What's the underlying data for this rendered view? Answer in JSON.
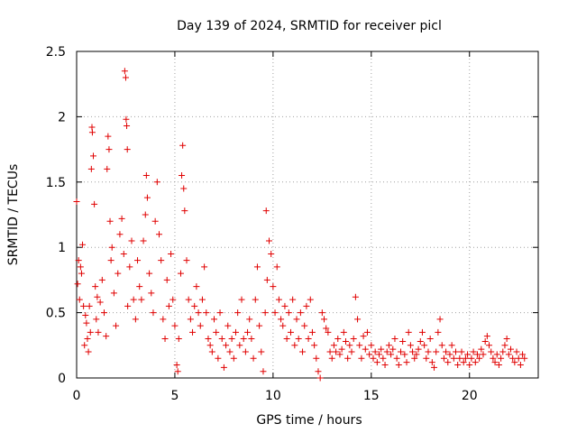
{
  "chart_data": {
    "type": "scatter",
    "title": "Day 139 of 2024, SRMTID for receiver picl",
    "xlabel": "GPS time / hours",
    "ylabel": "SRMTID / TECUs",
    "xlim": [
      0,
      23.5
    ],
    "ylim": [
      0,
      2.5
    ],
    "xticks": [
      0,
      5,
      10,
      15,
      20
    ],
    "yticks": [
      0,
      0.5,
      1,
      1.5,
      2,
      2.5
    ],
    "xtick_labels": [
      "0",
      "5",
      "10",
      "15",
      "20"
    ],
    "ytick_labels": [
      "0",
      "0.5",
      "1",
      "1.5",
      "2",
      "2.5"
    ],
    "grid": true,
    "marker": "+",
    "color": "#e00000",
    "series": [
      {
        "name": "SRMTID",
        "points": [
          [
            0.0,
            1.35
          ],
          [
            0.05,
            0.72
          ],
          [
            0.1,
            0.9
          ],
          [
            0.15,
            0.6
          ],
          [
            0.2,
            0.85
          ],
          [
            0.25,
            0.8
          ],
          [
            0.3,
            1.02
          ],
          [
            0.35,
            0.55
          ],
          [
            0.4,
            0.25
          ],
          [
            0.45,
            0.48
          ],
          [
            0.5,
            0.42
          ],
          [
            0.55,
            0.3
          ],
          [
            0.6,
            0.2
          ],
          [
            0.65,
            0.55
          ],
          [
            0.7,
            0.35
          ],
          [
            0.75,
            1.6
          ],
          [
            0.78,
            1.92
          ],
          [
            0.8,
            1.88
          ],
          [
            0.85,
            1.7
          ],
          [
            0.9,
            1.33
          ],
          [
            0.95,
            0.7
          ],
          [
            1.0,
            0.45
          ],
          [
            1.05,
            0.62
          ],
          [
            1.1,
            0.35
          ],
          [
            1.2,
            0.58
          ],
          [
            1.3,
            0.75
          ],
          [
            1.4,
            0.5
          ],
          [
            1.5,
            0.32
          ],
          [
            1.55,
            1.6
          ],
          [
            1.6,
            1.85
          ],
          [
            1.65,
            1.75
          ],
          [
            1.7,
            1.2
          ],
          [
            1.75,
            0.9
          ],
          [
            1.8,
            1.0
          ],
          [
            1.9,
            0.65
          ],
          [
            2.0,
            0.4
          ],
          [
            2.1,
            0.8
          ],
          [
            2.2,
            1.1
          ],
          [
            2.3,
            1.22
          ],
          [
            2.4,
            0.95
          ],
          [
            2.45,
            2.35
          ],
          [
            2.5,
            2.3
          ],
          [
            2.52,
            1.98
          ],
          [
            2.55,
            1.93
          ],
          [
            2.58,
            1.75
          ],
          [
            2.6,
            0.55
          ],
          [
            2.7,
            0.85
          ],
          [
            2.8,
            1.05
          ],
          [
            2.9,
            0.6
          ],
          [
            3.0,
            0.45
          ],
          [
            3.1,
            0.9
          ],
          [
            3.2,
            0.7
          ],
          [
            3.3,
            0.6
          ],
          [
            3.4,
            1.05
          ],
          [
            3.5,
            1.25
          ],
          [
            3.55,
            1.55
          ],
          [
            3.6,
            1.38
          ],
          [
            3.7,
            0.8
          ],
          [
            3.8,
            0.65
          ],
          [
            3.9,
            0.5
          ],
          [
            4.0,
            1.2
          ],
          [
            4.1,
            1.5
          ],
          [
            4.2,
            1.1
          ],
          [
            4.3,
            0.9
          ],
          [
            4.4,
            0.45
          ],
          [
            4.5,
            0.3
          ],
          [
            4.6,
            0.75
          ],
          [
            4.7,
            0.55
          ],
          [
            4.8,
            0.95
          ],
          [
            4.9,
            0.6
          ],
          [
            5.0,
            0.4
          ],
          [
            5.1,
            0.1
          ],
          [
            5.15,
            0.05
          ],
          [
            5.2,
            0.3
          ],
          [
            5.3,
            0.8
          ],
          [
            5.35,
            1.55
          ],
          [
            5.4,
            1.78
          ],
          [
            5.45,
            1.45
          ],
          [
            5.5,
            1.28
          ],
          [
            5.6,
            0.9
          ],
          [
            5.7,
            0.6
          ],
          [
            5.8,
            0.45
          ],
          [
            5.9,
            0.35
          ],
          [
            6.0,
            0.55
          ],
          [
            6.1,
            0.7
          ],
          [
            6.2,
            0.5
          ],
          [
            6.3,
            0.4
          ],
          [
            6.4,
            0.6
          ],
          [
            6.5,
            0.85
          ],
          [
            6.6,
            0.5
          ],
          [
            6.7,
            0.3
          ],
          [
            6.8,
            0.25
          ],
          [
            6.9,
            0.2
          ],
          [
            7.0,
            0.45
          ],
          [
            7.1,
            0.35
          ],
          [
            7.2,
            0.15
          ],
          [
            7.3,
            0.5
          ],
          [
            7.4,
            0.3
          ],
          [
            7.5,
            0.08
          ],
          [
            7.6,
            0.25
          ],
          [
            7.7,
            0.4
          ],
          [
            7.8,
            0.2
          ],
          [
            7.9,
            0.3
          ],
          [
            8.0,
            0.15
          ],
          [
            8.1,
            0.35
          ],
          [
            8.2,
            0.5
          ],
          [
            8.3,
            0.25
          ],
          [
            8.4,
            0.6
          ],
          [
            8.5,
            0.3
          ],
          [
            8.6,
            0.2
          ],
          [
            8.7,
            0.35
          ],
          [
            8.8,
            0.45
          ],
          [
            8.9,
            0.3
          ],
          [
            9.0,
            0.15
          ],
          [
            9.1,
            0.6
          ],
          [
            9.2,
            0.85
          ],
          [
            9.3,
            0.4
          ],
          [
            9.4,
            0.2
          ],
          [
            9.5,
            0.05
          ],
          [
            9.6,
            0.5
          ],
          [
            9.65,
            1.28
          ],
          [
            9.7,
            0.75
          ],
          [
            9.8,
            1.05
          ],
          [
            9.9,
            0.95
          ],
          [
            10.0,
            0.7
          ],
          [
            10.1,
            0.5
          ],
          [
            10.2,
            0.85
          ],
          [
            10.3,
            0.6
          ],
          [
            10.4,
            0.45
          ],
          [
            10.5,
            0.4
          ],
          [
            10.6,
            0.55
          ],
          [
            10.7,
            0.3
          ],
          [
            10.8,
            0.5
          ],
          [
            10.9,
            0.35
          ],
          [
            11.0,
            0.6
          ],
          [
            11.1,
            0.25
          ],
          [
            11.2,
            0.45
          ],
          [
            11.3,
            0.3
          ],
          [
            11.4,
            0.5
          ],
          [
            11.5,
            0.2
          ],
          [
            11.6,
            0.4
          ],
          [
            11.7,
            0.55
          ],
          [
            11.8,
            0.3
          ],
          [
            11.9,
            0.6
          ],
          [
            12.0,
            0.35
          ],
          [
            12.1,
            0.25
          ],
          [
            12.2,
            0.15
          ],
          [
            12.3,
            0.05
          ],
          [
            12.4,
            0.0
          ],
          [
            12.5,
            0.5
          ],
          [
            12.6,
            0.45
          ],
          [
            12.7,
            0.38
          ],
          [
            12.8,
            0.35
          ],
          [
            12.9,
            0.2
          ],
          [
            13.0,
            0.15
          ],
          [
            13.1,
            0.25
          ],
          [
            13.2,
            0.2
          ],
          [
            13.3,
            0.3
          ],
          [
            13.4,
            0.18
          ],
          [
            13.5,
            0.22
          ],
          [
            13.6,
            0.35
          ],
          [
            13.7,
            0.28
          ],
          [
            13.8,
            0.15
          ],
          [
            13.9,
            0.25
          ],
          [
            14.0,
            0.2
          ],
          [
            14.1,
            0.3
          ],
          [
            14.2,
            0.62
          ],
          [
            14.3,
            0.45
          ],
          [
            14.4,
            0.25
          ],
          [
            14.5,
            0.15
          ],
          [
            14.6,
            0.32
          ],
          [
            14.7,
            0.22
          ],
          [
            14.8,
            0.35
          ],
          [
            14.9,
            0.18
          ],
          [
            15.0,
            0.25
          ],
          [
            15.1,
            0.15
          ],
          [
            15.2,
            0.2
          ],
          [
            15.3,
            0.12
          ],
          [
            15.4,
            0.18
          ],
          [
            15.5,
            0.22
          ],
          [
            15.6,
            0.15
          ],
          [
            15.7,
            0.1
          ],
          [
            15.8,
            0.2
          ],
          [
            15.9,
            0.25
          ],
          [
            16.0,
            0.18
          ],
          [
            16.1,
            0.22
          ],
          [
            16.2,
            0.3
          ],
          [
            16.3,
            0.15
          ],
          [
            16.4,
            0.1
          ],
          [
            16.5,
            0.2
          ],
          [
            16.6,
            0.28
          ],
          [
            16.7,
            0.18
          ],
          [
            16.8,
            0.12
          ],
          [
            16.9,
            0.35
          ],
          [
            17.0,
            0.25
          ],
          [
            17.1,
            0.2
          ],
          [
            17.2,
            0.15
          ],
          [
            17.3,
            0.18
          ],
          [
            17.4,
            0.22
          ],
          [
            17.5,
            0.28
          ],
          [
            17.6,
            0.35
          ],
          [
            17.7,
            0.25
          ],
          [
            17.8,
            0.15
          ],
          [
            17.9,
            0.2
          ],
          [
            18.0,
            0.3
          ],
          [
            18.1,
            0.12
          ],
          [
            18.2,
            0.08
          ],
          [
            18.3,
            0.2
          ],
          [
            18.4,
            0.35
          ],
          [
            18.5,
            0.45
          ],
          [
            18.6,
            0.25
          ],
          [
            18.7,
            0.15
          ],
          [
            18.8,
            0.2
          ],
          [
            18.9,
            0.12
          ],
          [
            19.0,
            0.18
          ],
          [
            19.1,
            0.25
          ],
          [
            19.2,
            0.15
          ],
          [
            19.3,
            0.2
          ],
          [
            19.4,
            0.1
          ],
          [
            19.5,
            0.15
          ],
          [
            19.6,
            0.2
          ],
          [
            19.7,
            0.12
          ],
          [
            19.8,
            0.15
          ],
          [
            19.9,
            0.18
          ],
          [
            20.0,
            0.1
          ],
          [
            20.1,
            0.15
          ],
          [
            20.2,
            0.2
          ],
          [
            20.3,
            0.12
          ],
          [
            20.4,
            0.18
          ],
          [
            20.5,
            0.15
          ],
          [
            20.6,
            0.22
          ],
          [
            20.7,
            0.18
          ],
          [
            20.8,
            0.28
          ],
          [
            20.9,
            0.32
          ],
          [
            21.0,
            0.25
          ],
          [
            21.1,
            0.2
          ],
          [
            21.2,
            0.15
          ],
          [
            21.3,
            0.12
          ],
          [
            21.4,
            0.18
          ],
          [
            21.5,
            0.1
          ],
          [
            21.6,
            0.15
          ],
          [
            21.7,
            0.2
          ],
          [
            21.8,
            0.25
          ],
          [
            21.9,
            0.3
          ],
          [
            22.0,
            0.18
          ],
          [
            22.1,
            0.22
          ],
          [
            22.2,
            0.15
          ],
          [
            22.3,
            0.12
          ],
          [
            22.4,
            0.2
          ],
          [
            22.5,
            0.15
          ],
          [
            22.6,
            0.1
          ],
          [
            22.7,
            0.18
          ],
          [
            22.8,
            0.15
          ]
        ]
      }
    ]
  }
}
